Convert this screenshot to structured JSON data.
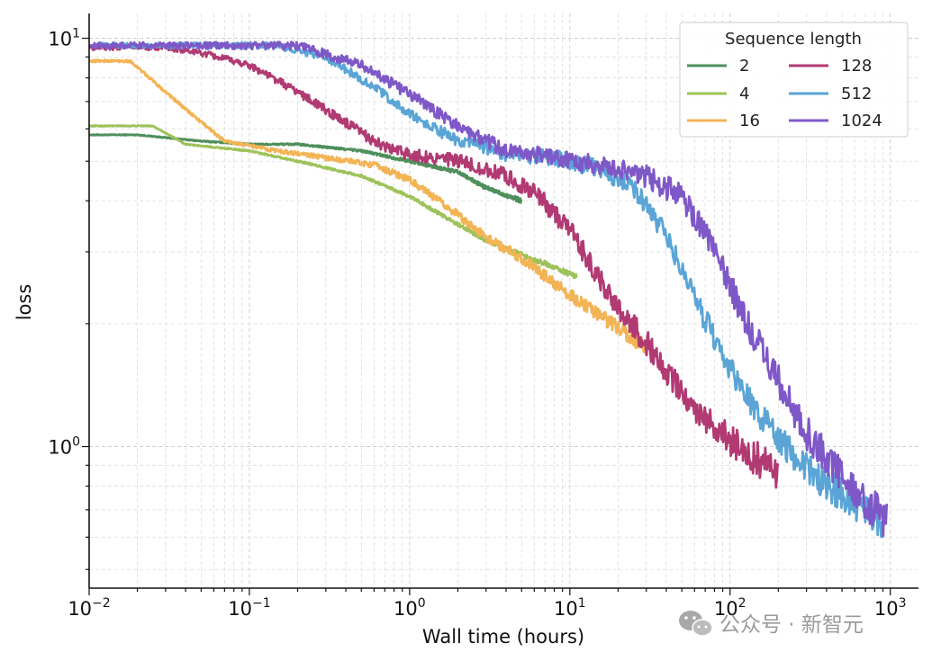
{
  "chart_data": {
    "type": "line",
    "title": "",
    "xlabel": "Wall time (hours)",
    "ylabel": "loss",
    "xscale": "log",
    "yscale": "log",
    "xlim": [
      0.01,
      1500
    ],
    "ylim": [
      0.45,
      11.5
    ],
    "grid": true,
    "x_ticks": [
      {
        "value": 0.01,
        "base": "10",
        "exp": "−2"
      },
      {
        "value": 0.1,
        "base": "10",
        "exp": "−1"
      },
      {
        "value": 1,
        "base": "10",
        "exp": "0"
      },
      {
        "value": 10,
        "base": "10",
        "exp": "1"
      },
      {
        "value": 100,
        "base": "10",
        "exp": "2"
      },
      {
        "value": 1000,
        "base": "10",
        "exp": "3"
      }
    ],
    "y_ticks": [
      {
        "value": 1,
        "base": "10",
        "exp": "0"
      },
      {
        "value": 10,
        "base": "10",
        "exp": "1"
      }
    ],
    "legend": {
      "title": "Sequence length",
      "placement": "top-right",
      "columns": 2
    },
    "series": [
      {
        "name": "2",
        "color": "#4f8f5b",
        "noise": 0.006,
        "points": [
          [
            0.01,
            5.8
          ],
          [
            0.02,
            5.8
          ],
          [
            0.05,
            5.6
          ],
          [
            0.1,
            5.5
          ],
          [
            0.2,
            5.5
          ],
          [
            0.5,
            5.3
          ],
          [
            1,
            5.0
          ],
          [
            2,
            4.7
          ],
          [
            3,
            4.3
          ],
          [
            5,
            4.0
          ]
        ]
      },
      {
        "name": "4",
        "color": "#9ec25a",
        "noise": 0.007,
        "points": [
          [
            0.01,
            6.1
          ],
          [
            0.025,
            6.1
          ],
          [
            0.04,
            5.5
          ],
          [
            0.1,
            5.3
          ],
          [
            0.2,
            5.0
          ],
          [
            0.5,
            4.6
          ],
          [
            1,
            4.1
          ],
          [
            2,
            3.5
          ],
          [
            3,
            3.2
          ],
          [
            5,
            2.95
          ],
          [
            8,
            2.75
          ],
          [
            11,
            2.6
          ]
        ]
      },
      {
        "name": "16",
        "color": "#f2b454",
        "noise": 0.02,
        "points": [
          [
            0.01,
            8.8
          ],
          [
            0.018,
            8.8
          ],
          [
            0.04,
            6.7
          ],
          [
            0.07,
            5.6
          ],
          [
            0.15,
            5.3
          ],
          [
            0.3,
            5.1
          ],
          [
            0.6,
            4.9
          ],
          [
            1,
            4.5
          ],
          [
            2,
            3.7
          ],
          [
            3,
            3.25
          ],
          [
            5,
            2.9
          ],
          [
            10,
            2.35
          ],
          [
            20,
            1.95
          ],
          [
            30,
            1.75
          ]
        ]
      },
      {
        "name": "128",
        "color": "#b13a73",
        "noise": 0.045,
        "points": [
          [
            0.01,
            9.5
          ],
          [
            0.03,
            9.5
          ],
          [
            0.05,
            9.2
          ],
          [
            0.1,
            8.6
          ],
          [
            0.2,
            7.4
          ],
          [
            0.4,
            6.2
          ],
          [
            0.7,
            5.4
          ],
          [
            1,
            5.2
          ],
          [
            2,
            5.0
          ],
          [
            4,
            4.6
          ],
          [
            6,
            4.2
          ],
          [
            10,
            3.4
          ],
          [
            15,
            2.6
          ],
          [
            20,
            2.2
          ],
          [
            30,
            1.8
          ],
          [
            50,
            1.35
          ],
          [
            80,
            1.12
          ],
          [
            120,
            0.98
          ],
          [
            200,
            0.87
          ]
        ]
      },
      {
        "name": "512",
        "color": "#5aa5d6",
        "noise": 0.045,
        "points": [
          [
            0.01,
            9.6
          ],
          [
            0.15,
            9.6
          ],
          [
            0.3,
            9.0
          ],
          [
            0.6,
            7.6
          ],
          [
            1,
            6.5
          ],
          [
            2,
            5.6
          ],
          [
            4,
            5.2
          ],
          [
            8,
            5.1
          ],
          [
            15,
            4.8
          ],
          [
            25,
            4.3
          ],
          [
            40,
            3.3
          ],
          [
            60,
            2.3
          ],
          [
            100,
            1.55
          ],
          [
            150,
            1.2
          ],
          [
            200,
            1.05
          ],
          [
            300,
            0.88
          ],
          [
            500,
            0.76
          ],
          [
            900,
            0.66
          ]
        ]
      },
      {
        "name": "1024",
        "color": "#7f58c8",
        "noise": 0.05,
        "points": [
          [
            0.01,
            9.6
          ],
          [
            0.2,
            9.6
          ],
          [
            0.5,
            8.6
          ],
          [
            1,
            7.3
          ],
          [
            2,
            6.1
          ],
          [
            4,
            5.3
          ],
          [
            8,
            5.1
          ],
          [
            15,
            4.9
          ],
          [
            30,
            4.6
          ],
          [
            50,
            4.1
          ],
          [
            80,
            3.1
          ],
          [
            120,
            2.1
          ],
          [
            200,
            1.45
          ],
          [
            300,
            1.08
          ],
          [
            500,
            0.85
          ],
          [
            700,
            0.74
          ],
          [
            950,
            0.66
          ]
        ]
      }
    ]
  },
  "watermark": {
    "text": "公众号 · 新智元",
    "icon": "wechat-icon"
  }
}
